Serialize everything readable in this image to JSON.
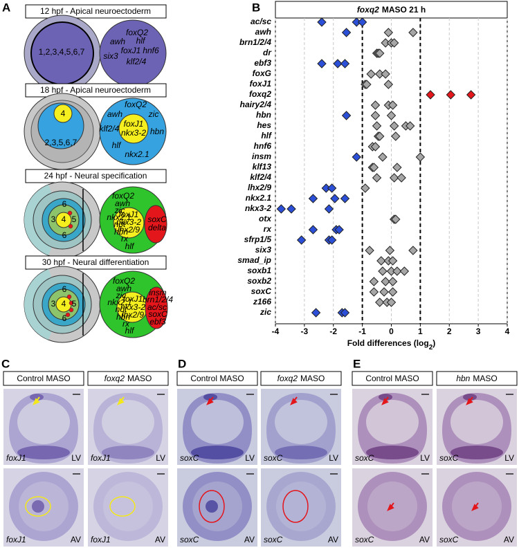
{
  "panel_a": {
    "letter": "A",
    "stages": [
      {
        "title": "12 hpf - Apical neuroectoderm",
        "left_labels": [
          "1,2,3,4,5,6,7"
        ],
        "right_labels": [
          "foxQ2",
          "awh",
          "hlf",
          "six3",
          "foxJ1",
          "hnf6",
          "klf2/4"
        ]
      },
      {
        "title": "18 hpf - Apical neuroectoderm",
        "left_labels": [
          "4",
          "2,3,5,6,7"
        ],
        "right_labels": [
          "foxQ2",
          "zic",
          "awh",
          "klf2/4",
          "foxJ1",
          "nkx3-2",
          "hbn",
          "hlf",
          "nkx2.1"
        ]
      },
      {
        "title": "24 hpf - Neural specification",
        "left_labels": [
          "6",
          "3",
          "4",
          "5",
          "6"
        ],
        "right_labels": [
          "foxQ2",
          "awh",
          "zic",
          "nkx2.1",
          "not",
          "hbn",
          "rx",
          "hlf",
          "foxJ1",
          "nkx3-2",
          "lhx2/9",
          "soxC",
          "delta"
        ]
      },
      {
        "title": "30 hpf - Neural differentiation",
        "left_labels": [
          "6",
          "3",
          "4",
          "5",
          "6"
        ],
        "right_labels": [
          "foxQ2",
          "awh",
          "zic",
          "nkx2.1",
          "not",
          "hbn",
          "rx",
          "hlf",
          "foxJ1",
          "nkx3-2",
          "lhx2/9",
          "insm",
          "brn1/2/4",
          "ac/sc",
          "soxC",
          "ebf3"
        ]
      }
    ]
  },
  "chart_data": {
    "type": "dot",
    "letter": "B",
    "title": {
      "gene": "foxq2",
      "text": "MASO 21 h"
    },
    "xlabel": [
      "Fold differences (log",
      "2",
      ")"
    ],
    "xlim": [
      -4,
      4
    ],
    "xticks": [
      -4,
      -3,
      -2,
      -1,
      0,
      1,
      2,
      3,
      4
    ],
    "grid": true,
    "reference_lines": [
      -1,
      1
    ],
    "rows": [
      {
        "name": "ac/sc",
        "color": "#2f4fc4",
        "values": [
          -2.4,
          -1.2,
          -1.0
        ],
        "colors": [
          "#2b4fd6",
          "#2b4fd6",
          "#2b4fd6"
        ]
      },
      {
        "name": "awh",
        "color": "#8c8c8c",
        "values": [
          -1.55,
          -0.1,
          0.75
        ],
        "colors": [
          "#2b4fd6",
          "#a6a6a6",
          "#a6a6a6"
        ]
      },
      {
        "name": "brn1/2/4",
        "color": "#8c8c8c",
        "values": [
          -0.2,
          0,
          0.1
        ],
        "colors": [
          "#a6a6a6",
          "#a6a6a6",
          "#a6a6a6"
        ]
      },
      {
        "name": "dr",
        "color": "#8c8c8c",
        "values": [
          -0.5,
          -0.45,
          -0.4
        ],
        "colors": [
          "#a6a6a6",
          "#a6a6a6",
          "#a6a6a6"
        ]
      },
      {
        "name": "ebf3",
        "color": "#2f4fc4",
        "values": [
          -2.4,
          -1.85,
          -1.6
        ],
        "colors": [
          "#2b4fd6",
          "#2b4fd6",
          "#2b4fd6"
        ]
      },
      {
        "name": "foxG",
        "color": "#8c8c8c",
        "values": [
          -0.7,
          -0.4,
          -0.2
        ],
        "colors": [
          "#a6a6a6",
          "#a6a6a6",
          "#a6a6a6"
        ]
      },
      {
        "name": "foxJ1",
        "color": "#8c8c8c",
        "values": [
          -0.9,
          -0.85,
          -0.1
        ],
        "colors": [
          "#a6a6a6",
          "#a6a6a6",
          "#a6a6a6"
        ]
      },
      {
        "name": "foxq2",
        "color": "#e3161c",
        "values": [
          1.35,
          2.05,
          2.75
        ],
        "colors": [
          "#e3161c",
          "#e3161c",
          "#e3161c"
        ]
      },
      {
        "name": "hairy2/4",
        "color": "#8c8c8c",
        "values": [
          -0.55,
          -0.1,
          0.05
        ],
        "colors": [
          "#a6a6a6",
          "#a6a6a6",
          "#a6a6a6"
        ]
      },
      {
        "name": "hbn",
        "color": "#8c8c8c",
        "values": [
          -1.55,
          -0.55,
          0
        ],
        "colors": [
          "#2b4fd6",
          "#a6a6a6",
          "#a6a6a6"
        ]
      },
      {
        "name": "hes",
        "color": "#8c8c8c",
        "values": [
          -0.5,
          0.1,
          0.5,
          0.65
        ],
        "colors": [
          "#a6a6a6",
          "#a6a6a6",
          "#a6a6a6",
          "#a6a6a6"
        ]
      },
      {
        "name": "hlf",
        "color": "#8c8c8c",
        "values": [
          -0.45,
          -0.4,
          0.15
        ],
        "colors": [
          "#a6a6a6",
          "#a6a6a6",
          "#a6a6a6"
        ]
      },
      {
        "name": "hnf6",
        "color": "#8c8c8c",
        "values": [
          -0.65,
          -0.55
        ],
        "colors": [
          "#a6a6a6",
          "#a6a6a6"
        ]
      },
      {
        "name": "insm",
        "color": "#8c8c8c",
        "values": [
          -1.2,
          -0.3,
          1.0
        ],
        "colors": [
          "#2b4fd6",
          "#a6a6a6",
          "#a6a6a6"
        ]
      },
      {
        "name": "klf13",
        "color": "#8c8c8c",
        "values": [
          -0.65,
          -0.6,
          0.2
        ],
        "colors": [
          "#a6a6a6",
          "#a6a6a6",
          "#a6a6a6"
        ]
      },
      {
        "name": "klf2/4",
        "color": "#8c8c8c",
        "values": [
          -0.5,
          0.1,
          0.35
        ],
        "colors": [
          "#a6a6a6",
          "#a6a6a6",
          "#a6a6a6"
        ]
      },
      {
        "name": "lhx2/9",
        "color": "#2f4fc4",
        "values": [
          -2.25,
          -2.05,
          -0.9
        ],
        "colors": [
          "#2b4fd6",
          "#2b4fd6",
          "#a6a6a6"
        ]
      },
      {
        "name": "nkx2.1",
        "color": "#2f4fc4",
        "values": [
          -2.7,
          -1.95,
          -1.6
        ],
        "colors": [
          "#2b4fd6",
          "#2b4fd6",
          "#2b4fd6"
        ]
      },
      {
        "name": "nkx3-2",
        "color": "#2f4fc4",
        "values": [
          -3.8,
          -3.45,
          -2.15
        ],
        "colors": [
          "#2b4fd6",
          "#2b4fd6",
          "#2b4fd6"
        ]
      },
      {
        "name": "otx",
        "color": "#8c8c8c",
        "values": [
          0.1,
          0.15
        ],
        "colors": [
          "#a6a6a6",
          "#a6a6a6"
        ]
      },
      {
        "name": "rx",
        "color": "#2f4fc4",
        "values": [
          -2.7,
          -1.9,
          -1.8
        ],
        "colors": [
          "#2b4fd6",
          "#2b4fd6",
          "#2b4fd6"
        ]
      },
      {
        "name": "sfrp1/5",
        "color": "#2f4fc4",
        "values": [
          -3.1,
          -2.15,
          -2.05
        ],
        "colors": [
          "#2b4fd6",
          "#2b4fd6",
          "#2b4fd6"
        ]
      },
      {
        "name": "six3",
        "color": "#8c8c8c",
        "values": [
          -0.75,
          -0.05,
          0.75
        ],
        "colors": [
          "#a6a6a6",
          "#a6a6a6",
          "#a6a6a6"
        ]
      },
      {
        "name": "smad_ip",
        "color": "#8c8c8c",
        "values": [
          -0.35,
          -0.1,
          0.05
        ],
        "colors": [
          "#a6a6a6",
          "#a6a6a6",
          "#a6a6a6"
        ]
      },
      {
        "name": "soxb1",
        "color": "#8c8c8c",
        "values": [
          -0.3,
          0,
          0.2,
          0.45
        ],
        "colors": [
          "#a6a6a6",
          "#a6a6a6",
          "#a6a6a6",
          "#a6a6a6"
        ]
      },
      {
        "name": "soxb2",
        "color": "#8c8c8c",
        "values": [
          -0.6,
          -0.2,
          0.05
        ],
        "colors": [
          "#a6a6a6",
          "#a6a6a6",
          "#a6a6a6"
        ]
      },
      {
        "name": "soxC",
        "color": "#8c8c8c",
        "values": [
          -0.6,
          -0.25,
          0.05
        ],
        "colors": [
          "#a6a6a6",
          "#a6a6a6",
          "#a6a6a6"
        ]
      },
      {
        "name": "z166",
        "color": "#8c8c8c",
        "values": [
          -0.4,
          -0.15,
          0
        ],
        "colors": [
          "#a6a6a6",
          "#a6a6a6",
          "#a6a6a6"
        ]
      },
      {
        "name": "zic",
        "color": "#2f4fc4",
        "values": [
          -2.6,
          -1.7,
          -1.6
        ],
        "colors": [
          "#2b4fd6",
          "#2b4fd6",
          "#2b4fd6"
        ]
      }
    ]
  },
  "panels_cde": [
    {
      "letter": "C",
      "columns": [
        {
          "header": {
            "text": "Control MASO"
          },
          "images": [
            {
              "gene": "foxJ1",
              "view": "LV"
            },
            {
              "gene": "foxJ1",
              "view": "AV"
            }
          ]
        },
        {
          "header": {
            "gene": "foxq2",
            "text": "MASO"
          },
          "images": [
            {
              "gene": "foxJ1",
              "view": "LV"
            },
            {
              "gene": "foxJ1",
              "view": "AV"
            }
          ]
        }
      ]
    },
    {
      "letter": "D",
      "columns": [
        {
          "header": {
            "text": "Control MASO"
          },
          "images": [
            {
              "gene": "soxC",
              "view": "LV"
            },
            {
              "gene": "soxC",
              "view": "AV"
            }
          ]
        },
        {
          "header": {
            "gene": "foxq2",
            "text": "MASO"
          },
          "images": [
            {
              "gene": "soxC",
              "view": "LV"
            },
            {
              "gene": "soxC",
              "view": "AV"
            }
          ]
        }
      ]
    },
    {
      "letter": "E",
      "columns": [
        {
          "header": {
            "text": "Control MASO"
          },
          "images": [
            {
              "gene": "soxC",
              "view": "LV"
            },
            {
              "gene": "soxC",
              "view": "AV"
            }
          ]
        },
        {
          "header": {
            "gene": "hbn",
            "text": "MASO"
          },
          "images": [
            {
              "gene": "soxC",
              "view": "LV"
            },
            {
              "gene": "soxC",
              "view": "AV"
            }
          ]
        }
      ]
    }
  ]
}
